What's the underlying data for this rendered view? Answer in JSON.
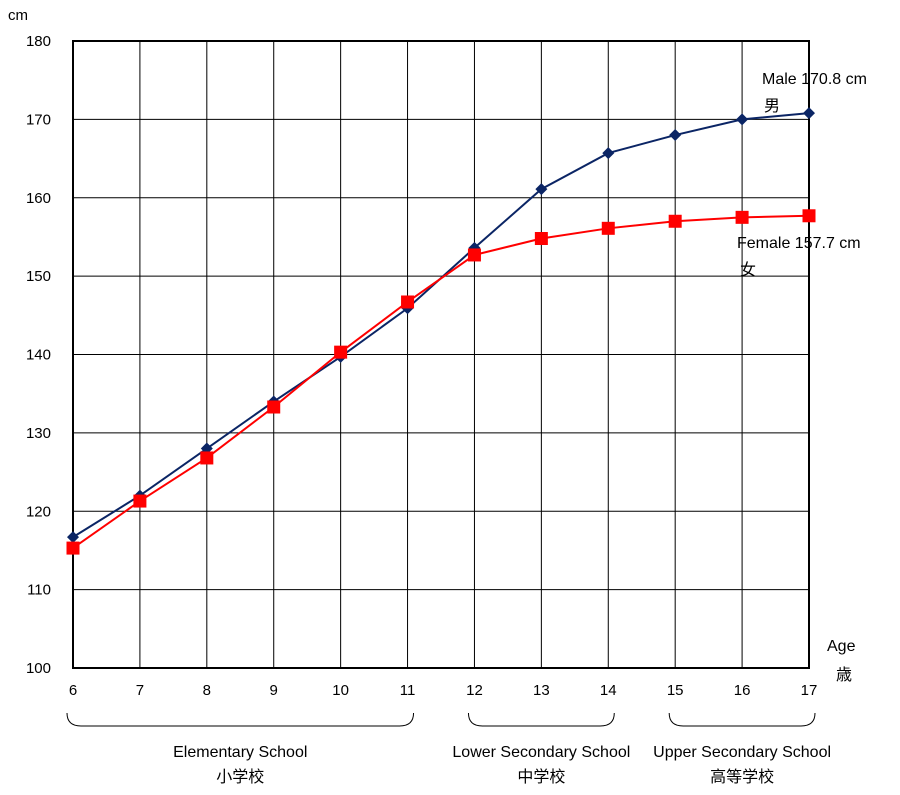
{
  "chart_data": {
    "type": "line",
    "title": "",
    "y_unit": "cm",
    "x_label": "Age",
    "x_label_jp": "歳",
    "x": [
      6,
      7,
      8,
      9,
      10,
      11,
      12,
      13,
      14,
      15,
      16,
      17
    ],
    "y_range": [
      100,
      180
    ],
    "y_ticks": [
      100,
      110,
      120,
      130,
      140,
      150,
      160,
      170,
      180
    ],
    "grid": true,
    "legend": "none",
    "series": [
      {
        "name": "Male",
        "name_jp": "男",
        "color": "#0b2565",
        "marker": "diamond",
        "values": [
          116.7,
          122.0,
          128.0,
          134.0,
          139.7,
          145.9,
          153.6,
          161.1,
          165.7,
          168.0,
          170.0,
          170.8
        ],
        "end_label": "Male 170.8 cm"
      },
      {
        "name": "Female",
        "name_jp": "女",
        "color": "#ff0000",
        "marker": "square",
        "values": [
          115.3,
          121.3,
          126.8,
          133.3,
          140.3,
          146.7,
          152.7,
          154.8,
          156.1,
          157.0,
          157.5,
          157.7
        ],
        "end_label": "Female 157.7 cm"
      }
    ],
    "school_stages": [
      {
        "label": "Elementary School",
        "label_jp": "小学校",
        "from": 6,
        "to": 11
      },
      {
        "label": "Lower Secondary School",
        "label_jp": "中学校",
        "from": 12,
        "to": 14
      },
      {
        "label": "Upper Secondary School",
        "label_jp": "高等学校",
        "from": 15,
        "to": 17
      }
    ]
  }
}
